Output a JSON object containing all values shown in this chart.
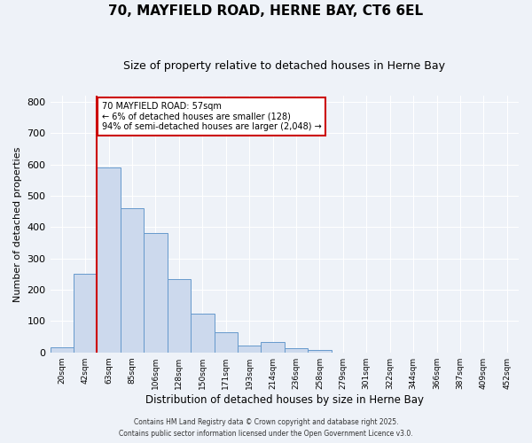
{
  "title": "70, MAYFIELD ROAD, HERNE BAY, CT6 6EL",
  "subtitle": "Size of property relative to detached houses in Herne Bay",
  "xlabel": "Distribution of detached houses by size in Herne Bay",
  "ylabel": "Number of detached properties",
  "bar_values": [
    15,
    250,
    590,
    460,
    380,
    235,
    125,
    65,
    22,
    32,
    12,
    8,
    0,
    0,
    0,
    0,
    0,
    0,
    0,
    0
  ],
  "bin_labels": [
    "20sqm",
    "42sqm",
    "63sqm",
    "85sqm",
    "106sqm",
    "128sqm",
    "150sqm",
    "171sqm",
    "193sqm",
    "214sqm",
    "236sqm",
    "258sqm",
    "279sqm",
    "301sqm",
    "322sqm",
    "344sqm",
    "366sqm",
    "387sqm",
    "409sqm",
    "452sqm"
  ],
  "bar_color": "#ccd9ed",
  "bar_edge_color": "#6699cc",
  "ylim": [
    0,
    820
  ],
  "yticks": [
    0,
    100,
    200,
    300,
    400,
    500,
    600,
    700,
    800
  ],
  "vline_color": "#cc0000",
  "annotation_title": "70 MAYFIELD ROAD: 57sqm",
  "annotation_line1": "← 6% of detached houses are smaller (128)",
  "annotation_line2": "94% of semi-detached houses are larger (2,048) →",
  "annotation_box_color": "#ffffff",
  "annotation_box_edge": "#cc0000",
  "bg_color": "#eef2f8",
  "grid_color": "#ffffff",
  "footer1": "Contains HM Land Registry data © Crown copyright and database right 2025.",
  "footer2": "Contains public sector information licensed under the Open Government Licence v3.0."
}
